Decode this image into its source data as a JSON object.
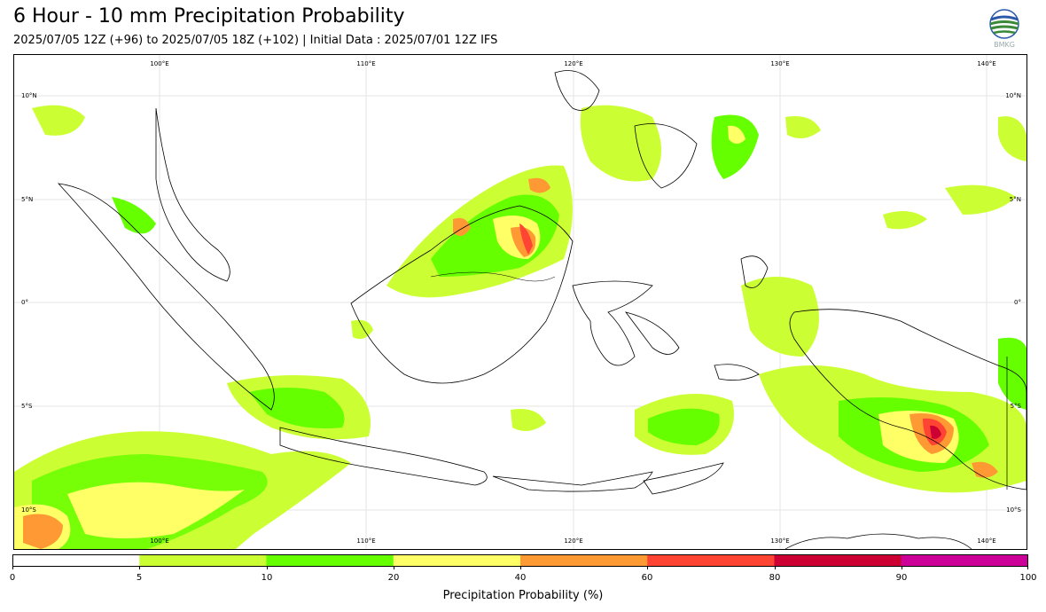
{
  "title": "6 Hour - 10 mm Precipitation Probability",
  "subtitle": "2025/07/05 12Z (+96) to 2025/07/05 18Z (+102) | Initial Data : 2025/07/01 12Z IFS",
  "logo": {
    "icon": "bmkg-logo",
    "text": "BMKG"
  },
  "map": {
    "lon_labels": [
      "100°E",
      "110°E",
      "120°E",
      "130°E",
      "140°E"
    ],
    "lat_labels": [
      "10°N",
      "5°N",
      "0°",
      "5°S",
      "10°S"
    ],
    "colors": [
      "#ffffff",
      "#ccff33",
      "#66ff00",
      "#ffff66",
      "#ff9933",
      "#ff4433",
      "#cc0033",
      "#cc0099"
    ]
  },
  "colorbar": {
    "ticks": [
      "0",
      "5",
      "10",
      "20",
      "40",
      "60",
      "80",
      "90",
      "100"
    ],
    "label": "Precipitation Probability (%)"
  }
}
